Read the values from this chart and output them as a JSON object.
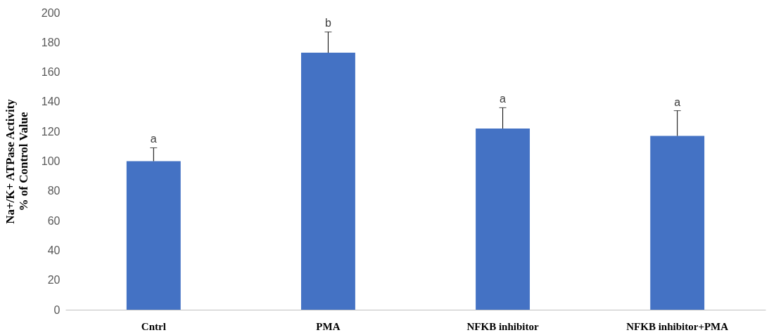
{
  "chart_data": {
    "type": "bar",
    "ylabel": "Na+/K+ ATPase Activity\n% of Control Value",
    "categories": [
      "Cntrl",
      "PMA",
      "NFKB inhibitor",
      "NFKB inhibitor+PMA"
    ],
    "values": [
      100,
      173,
      122,
      117
    ],
    "color": "#4472c4",
    "errors": [
      [
        100,
        109
      ],
      [
        173,
        187
      ],
      [
        122,
        136
      ],
      [
        117,
        134
      ]
    ],
    "ylim": [
      0,
      200
    ],
    "yticks": [
      0,
      20,
      40,
      60,
      80,
      100,
      120,
      140,
      160,
      180,
      200
    ],
    "grid": false,
    "annotations": [
      {
        "text": "a",
        "x": "Cntrl",
        "y": 109
      },
      {
        "text": "b",
        "x": "PMA",
        "y": 187
      },
      {
        "text": "a",
        "x": "NFKB inhibitor",
        "y": 136
      },
      {
        "text": "a",
        "x": "NFKB inhibitor+PMA",
        "y": 134
      }
    ]
  }
}
